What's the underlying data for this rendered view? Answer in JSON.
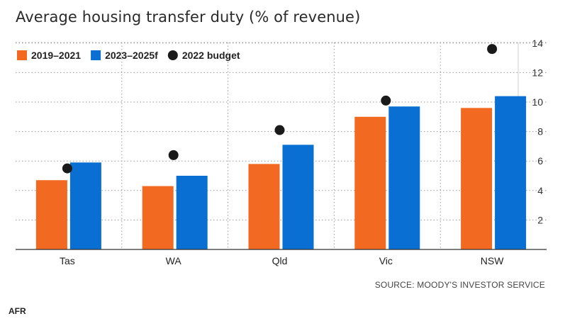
{
  "title": "Average housing transfer duty (% of revenue)",
  "source": "SOURCE: MOODY'S INVESTOR SERVICE",
  "brand": "AFR",
  "chart_data": {
    "type": "bar",
    "title": "Average housing transfer duty (% of revenue)",
    "categories": [
      "Tas",
      "WA",
      "Qld",
      "Vic",
      "NSW"
    ],
    "series": [
      {
        "name": "2019–2021",
        "type": "bar",
        "color": "#f26a21",
        "values": [
          4.7,
          4.3,
          5.8,
          9.0,
          9.6
        ]
      },
      {
        "name": "2023–2025f",
        "type": "bar",
        "color": "#0a6fd2",
        "values": [
          5.9,
          5.0,
          7.1,
          9.7,
          10.4
        ]
      },
      {
        "name": "2022 budget",
        "type": "marker",
        "color": "#1a1a1a",
        "values": [
          5.5,
          6.4,
          8.1,
          10.1,
          13.6
        ]
      }
    ],
    "ylim": [
      0,
      14
    ],
    "yticks": [
      2,
      4,
      6,
      8,
      10,
      12,
      14
    ],
    "y_axis_side": "right",
    "grid": "dotted",
    "legend_position": "top-left"
  }
}
